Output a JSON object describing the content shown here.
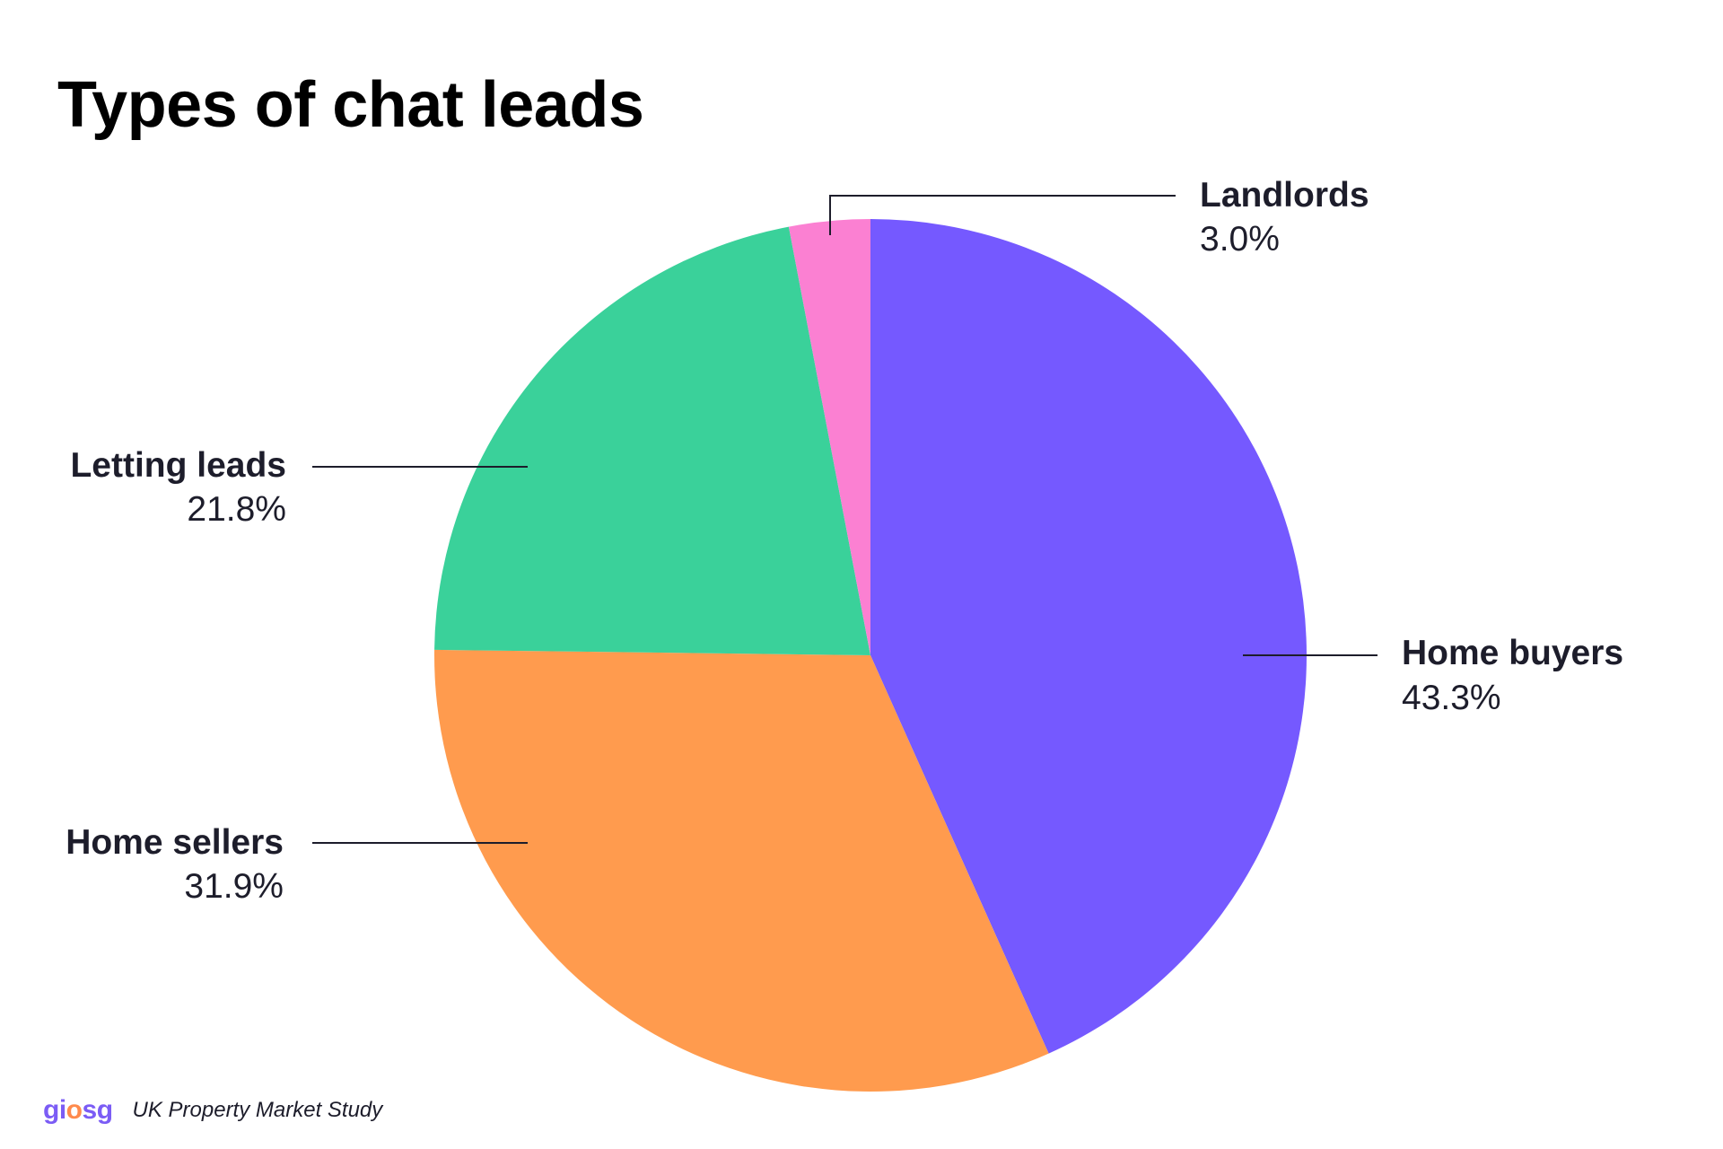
{
  "chart_data": {
    "type": "pie",
    "title": "Types of chat leads",
    "slices": [
      {
        "label": "Home buyers",
        "value": 43.3,
        "display": "43.3%",
        "color": "#7559ff"
      },
      {
        "label": "Home sellers",
        "value": 31.9,
        "display": "31.9%",
        "color": "#ff9b4e"
      },
      {
        "label": "Letting leads",
        "value": 21.8,
        "display": "21.8%",
        "color": "#3ad19a"
      },
      {
        "label": "Landlords",
        "value": 3.0,
        "display": "3.0%",
        "color": "#fb80d2"
      }
    ],
    "start": "12 o'clock",
    "direction": "clockwise",
    "legend": "none (direct labels with leader lines)"
  },
  "footer": {
    "logo_text": "giosg",
    "caption": "UK Property Market Study"
  },
  "colors": {
    "text": "#1d1d2b",
    "title": "#000000",
    "leader_line": "#1d1d2b",
    "background": "#ffffff"
  }
}
